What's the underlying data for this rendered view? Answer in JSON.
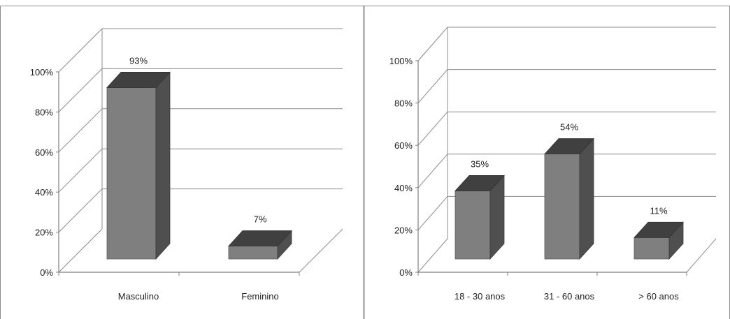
{
  "colors": {
    "bar_front": "#7f7f7f",
    "bar_top": "#404040",
    "bar_side": "#4f4f4f",
    "gridline": "#8c8c8c",
    "axis": "#808080",
    "border": "#8c8c8c",
    "text": "#222222"
  },
  "chart_data": [
    {
      "type": "bar",
      "categories": [
        "Masculino",
        "Feminino"
      ],
      "values": [
        93,
        7
      ],
      "value_labels": [
        "93%",
        "7%"
      ],
      "ylim": [
        0,
        100
      ],
      "yticks": [
        0,
        20,
        40,
        60,
        80,
        100
      ],
      "ytick_labels": [
        "0%",
        "20%",
        "40%",
        "60%",
        "80%",
        "100%"
      ],
      "grid": true,
      "style": "3d-column"
    },
    {
      "type": "bar",
      "categories": [
        "18 - 30 anos",
        "31 - 60 anos",
        "> 60 anos"
      ],
      "values": [
        35,
        54,
        11
      ],
      "value_labels": [
        "35%",
        "54%",
        "11%"
      ],
      "ylim": [
        0,
        100
      ],
      "yticks": [
        0,
        20,
        40,
        60,
        80,
        100
      ],
      "ytick_labels": [
        "0%",
        "20%",
        "40%",
        "60%",
        "80%",
        "100%"
      ],
      "grid": true,
      "style": "3d-column"
    }
  ]
}
